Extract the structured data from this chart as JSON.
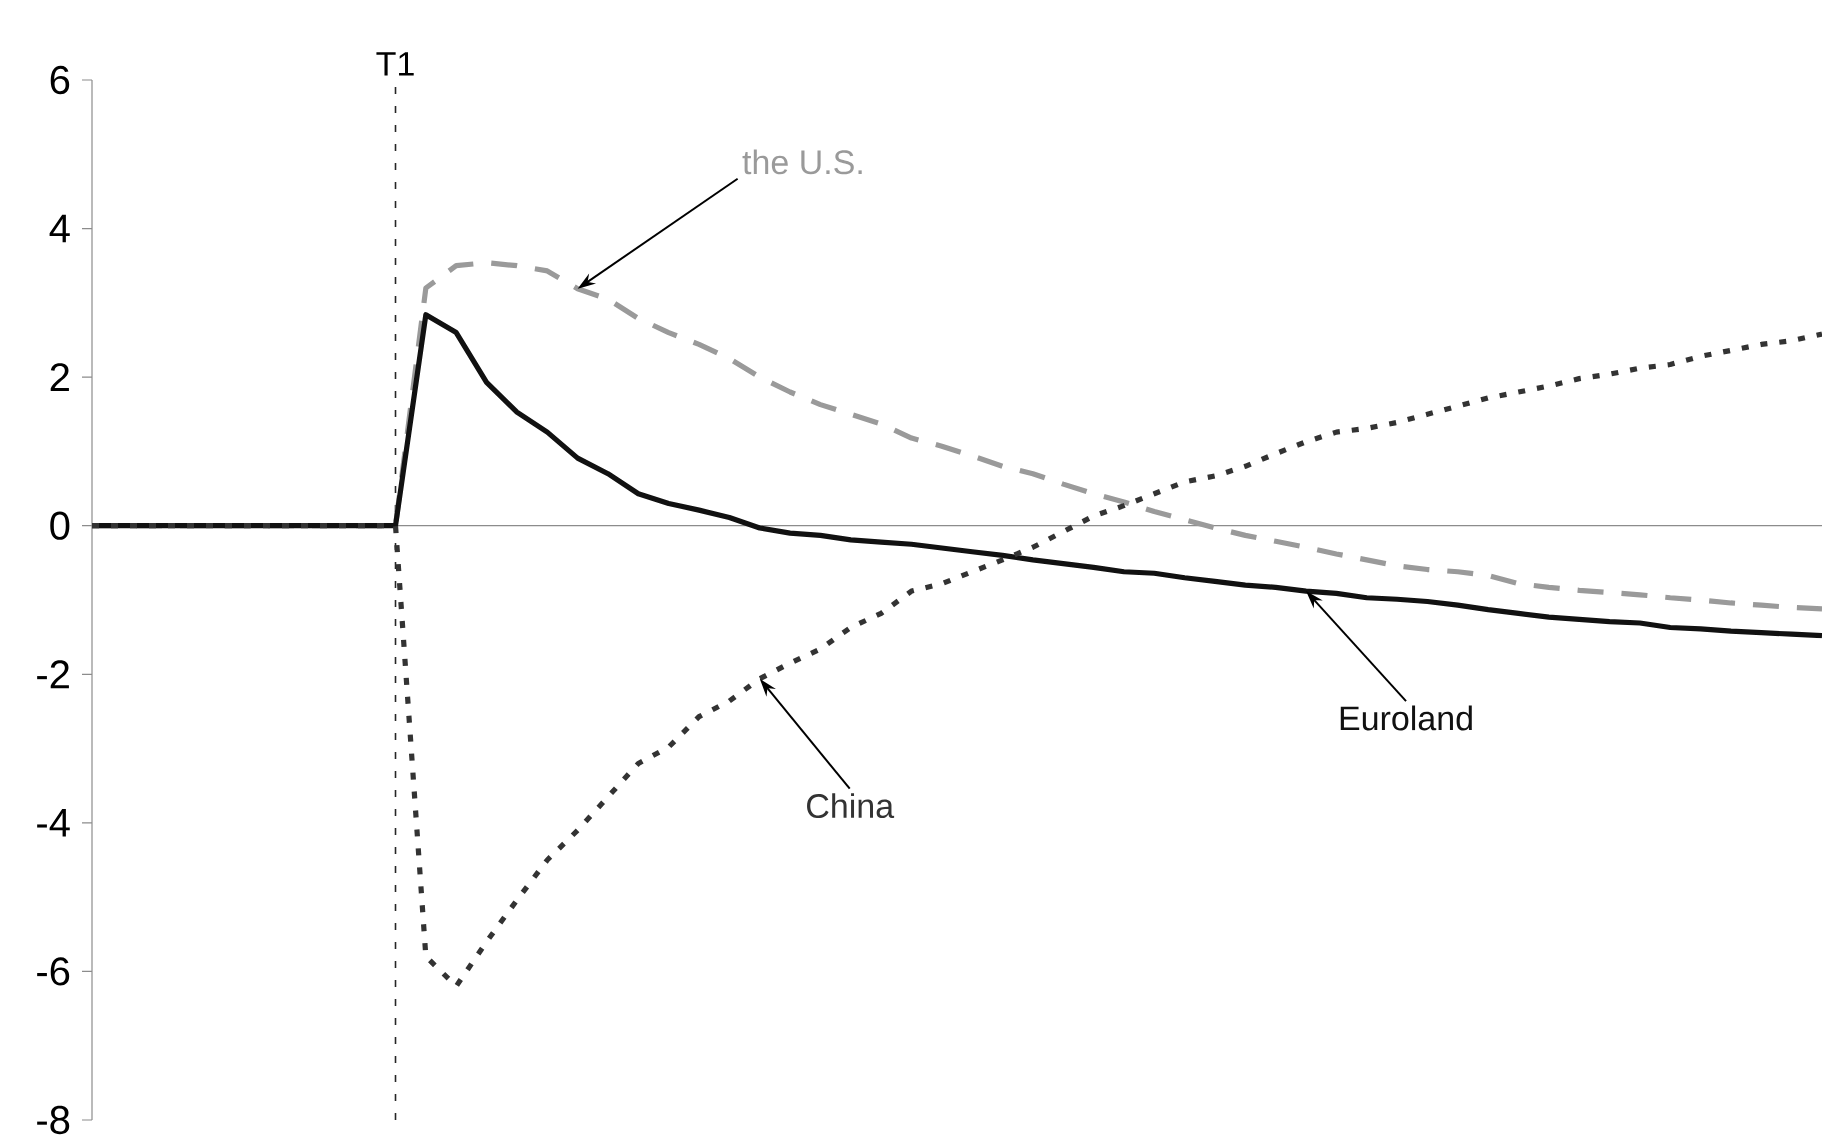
{
  "chart_data": {
    "type": "line",
    "categories": [
      null,
      null,
      null,
      null,
      null,
      null,
      null,
      null,
      null,
      null,
      null,
      null,
      null,
      null,
      null,
      null,
      null,
      null,
      null,
      null,
      null,
      null,
      null,
      null,
      null,
      null,
      null,
      null,
      null,
      null,
      null,
      null,
      null,
      null,
      null,
      null,
      null,
      null,
      null,
      null,
      null,
      null,
      null,
      null,
      null,
      null,
      null,
      null,
      null,
      null,
      null,
      null,
      null,
      null,
      null,
      null,
      null,
      null
    ],
    "ylim": [
      -8,
      6
    ],
    "yticks": [
      6,
      4,
      2,
      0,
      -2,
      -4,
      -6,
      -8
    ],
    "tick_labels": "y",
    "series": [
      {
        "name": "the U.S.",
        "color": "#9a9a9a",
        "line_style": "dashed",
        "values": [
          0,
          0,
          0,
          0,
          0,
          0,
          0,
          0,
          0,
          0,
          0,
          3.2,
          3.5,
          3.54,
          3.5,
          3.43,
          3.19,
          3.05,
          2.79,
          2.6,
          2.44,
          2.25,
          2.0,
          1.8,
          1.63,
          1.5,
          1.37,
          1.18,
          1.07,
          0.94,
          0.8,
          0.7,
          0.56,
          0.43,
          0.32,
          0.19,
          0.08,
          -0.03,
          -0.13,
          -0.21,
          -0.29,
          -0.38,
          -0.46,
          -0.54,
          -0.59,
          -0.62,
          -0.67,
          -0.78,
          -0.83,
          -0.87,
          -0.9,
          -0.93,
          -0.97,
          -1.0,
          -1.04,
          -1.07,
          -1.1,
          -1.12
        ]
      },
      {
        "name": "Euroland",
        "color": "#111111",
        "line_style": "solid",
        "values": [
          0,
          0,
          0,
          0,
          0,
          0,
          0,
          0,
          0,
          0,
          0,
          2.84,
          2.6,
          1.93,
          1.53,
          1.26,
          0.91,
          0.7,
          0.43,
          0.3,
          0.21,
          0.11,
          -0.03,
          -0.1,
          -0.13,
          -0.19,
          -0.22,
          -0.25,
          -0.3,
          -0.35,
          -0.4,
          -0.46,
          -0.51,
          -0.56,
          -0.62,
          -0.64,
          -0.7,
          -0.75,
          -0.8,
          -0.83,
          -0.88,
          -0.91,
          -0.97,
          -0.99,
          -1.02,
          -1.07,
          -1.13,
          -1.18,
          -1.23,
          -1.26,
          -1.29,
          -1.31,
          -1.37,
          -1.39,
          -1.42,
          -1.44,
          -1.46,
          -1.48
        ]
      },
      {
        "name": "China",
        "color": "#333333",
        "line_style": "dotted",
        "values": [
          0,
          0,
          0,
          0,
          0,
          0,
          0,
          0,
          0,
          0,
          0,
          -5.8,
          -6.2,
          -5.6,
          -5.04,
          -4.5,
          -4.1,
          -3.65,
          -3.2,
          -2.98,
          -2.57,
          -2.36,
          -2.06,
          -1.85,
          -1.66,
          -1.37,
          -1.18,
          -0.88,
          -0.78,
          -0.62,
          -0.46,
          -0.29,
          -0.08,
          0.13,
          0.27,
          0.43,
          0.59,
          0.67,
          0.8,
          0.97,
          1.13,
          1.26,
          1.31,
          1.39,
          1.5,
          1.61,
          1.72,
          1.8,
          1.88,
          1.98,
          2.04,
          2.12,
          2.17,
          2.28,
          2.36,
          2.44,
          2.49,
          2.58
        ]
      }
    ],
    "annotations": [
      "T1"
    ]
  }
}
